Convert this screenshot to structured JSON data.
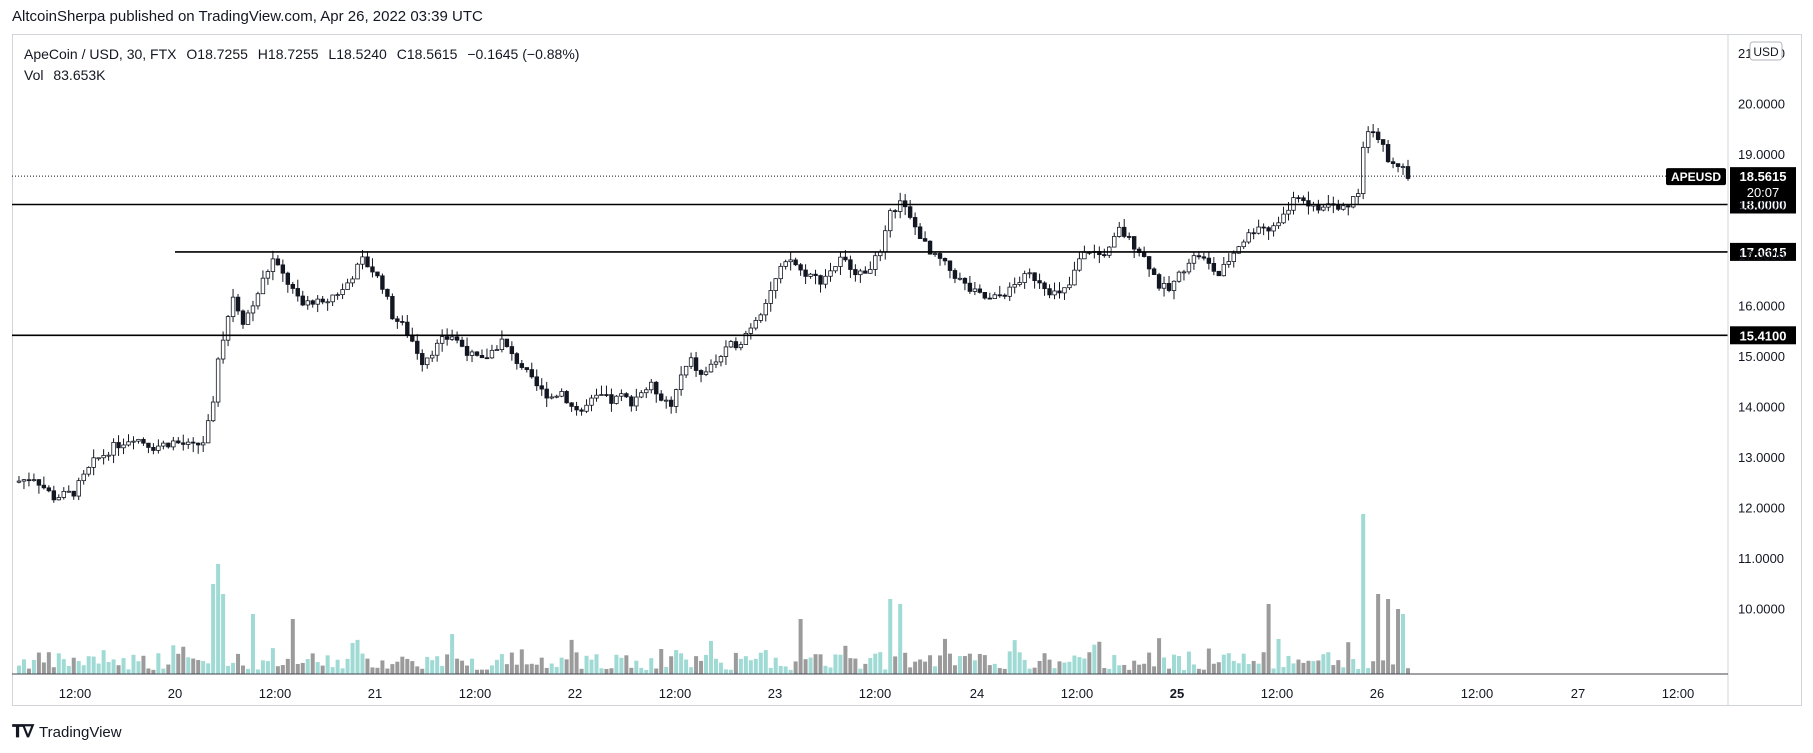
{
  "header": {
    "published": "AltcoinSherpa published on TradingView.com, Apr 26, 2022 03:39 UTC"
  },
  "legend": {
    "symbol": "ApeCoin / USD, 30, FTX",
    "open_label": "O",
    "open": "18.7255",
    "high_label": "H",
    "high": "18.7255",
    "low_label": "L",
    "low": "18.5240",
    "close_label": "C",
    "close": "18.5615",
    "change": "−0.1645 (−0.88%)",
    "vol_label": "Vol",
    "vol": "83.653K"
  },
  "price_axis": {
    "currency": "USD"
  },
  "footer": {
    "brand": "TradingView"
  },
  "colors": {
    "up": "#131722",
    "down": "#131722",
    "vol_up": "#8fd3cc",
    "vol_down": "#8a8a8a",
    "line": "#000000"
  },
  "chart_data": {
    "type": "candlestick",
    "symbol": "APEUSD",
    "interval": "30",
    "ylim": [
      10.5,
      21.0
    ],
    "y_ticks": [
      "10.0000",
      "11.0000",
      "12.0000",
      "13.0000",
      "14.0000",
      "15.0000",
      "16.0000",
      "17.0000",
      "18.0000",
      "19.0000",
      "20.0000",
      "21.0000"
    ],
    "x_ticks": [
      "12:00",
      "20",
      "12:00",
      "21",
      "12:00",
      "22",
      "12:00",
      "23",
      "12:00",
      "24",
      "12:00",
      "25",
      "12:00",
      "26",
      "12:00",
      "27",
      "12:00"
    ],
    "last_price": {
      "label": "APEUSD",
      "value": "18.5615",
      "countdown": "20:07"
    },
    "horizontal_levels": [
      "18.0000",
      "17.0615",
      "15.4100"
    ],
    "close_path": [
      [
        0,
        12.5
      ],
      [
        4,
        12.6
      ],
      [
        8,
        12.2
      ],
      [
        12,
        12.3
      ],
      [
        16,
        12.9
      ],
      [
        20,
        13.2
      ],
      [
        24,
        13.4
      ],
      [
        28,
        13.2
      ],
      [
        32,
        13.3
      ],
      [
        36,
        13.2
      ],
      [
        38,
        13.3
      ],
      [
        40,
        14.0
      ],
      [
        41,
        15.0
      ],
      [
        42,
        15.4
      ],
      [
        44,
        16.2
      ],
      [
        46,
        15.7
      ],
      [
        48,
        16.0
      ],
      [
        50,
        16.5
      ],
      [
        52,
        16.9
      ],
      [
        54,
        16.6
      ],
      [
        56,
        16.3
      ],
      [
        58,
        16.0
      ],
      [
        60,
        16.1
      ],
      [
        62,
        16.0
      ],
      [
        64,
        16.2
      ],
      [
        66,
        16.3
      ],
      [
        68,
        16.6
      ],
      [
        70,
        16.9
      ],
      [
        72,
        16.7
      ],
      [
        74,
        16.4
      ],
      [
        76,
        15.8
      ],
      [
        78,
        15.6
      ],
      [
        80,
        15.3
      ],
      [
        82,
        14.9
      ],
      [
        84,
        15.1
      ],
      [
        86,
        15.3
      ],
      [
        88,
        15.4
      ],
      [
        90,
        15.2
      ],
      [
        92,
        15.0
      ],
      [
        94,
        14.9
      ],
      [
        96,
        15.1
      ],
      [
        98,
        15.3
      ],
      [
        100,
        15.0
      ],
      [
        102,
        14.8
      ],
      [
        104,
        14.5
      ],
      [
        106,
        14.3
      ],
      [
        108,
        14.2
      ],
      [
        110,
        14.3
      ],
      [
        112,
        14.0
      ],
      [
        114,
        13.9
      ],
      [
        116,
        14.1
      ],
      [
        118,
        14.2
      ],
      [
        120,
        14.1
      ],
      [
        122,
        14.2
      ],
      [
        124,
        14.1
      ],
      [
        126,
        14.3
      ],
      [
        128,
        14.4
      ],
      [
        130,
        14.2
      ],
      [
        132,
        14.0
      ],
      [
        134,
        14.6
      ],
      [
        136,
        14.9
      ],
      [
        138,
        14.6
      ],
      [
        140,
        14.8
      ],
      [
        142,
        15.0
      ],
      [
        144,
        15.2
      ],
      [
        146,
        15.3
      ],
      [
        148,
        15.6
      ],
      [
        150,
        15.9
      ],
      [
        152,
        16.3
      ],
      [
        154,
        16.7
      ],
      [
        156,
        16.9
      ],
      [
        158,
        16.7
      ],
      [
        160,
        16.6
      ],
      [
        162,
        16.5
      ],
      [
        164,
        16.7
      ],
      [
        166,
        16.9
      ],
      [
        168,
        16.8
      ],
      [
        170,
        16.6
      ],
      [
        172,
        16.8
      ],
      [
        174,
        17.0
      ],
      [
        176,
        17.8
      ],
      [
        178,
        18.1
      ],
      [
        180,
        17.7
      ],
      [
        182,
        17.4
      ],
      [
        184,
        17.0
      ],
      [
        186,
        16.9
      ],
      [
        188,
        16.7
      ],
      [
        190,
        16.5
      ],
      [
        192,
        16.3
      ],
      [
        194,
        16.2
      ],
      [
        196,
        16.1
      ],
      [
        198,
        16.2
      ],
      [
        200,
        16.3
      ],
      [
        202,
        16.5
      ],
      [
        204,
        16.6
      ],
      [
        206,
        16.5
      ],
      [
        208,
        16.3
      ],
      [
        210,
        16.2
      ],
      [
        212,
        16.4
      ],
      [
        214,
        16.9
      ],
      [
        216,
        17.1
      ],
      [
        218,
        17.0
      ],
      [
        220,
        17.1
      ],
      [
        222,
        17.5
      ],
      [
        224,
        17.3
      ],
      [
        226,
        17.1
      ],
      [
        228,
        16.8
      ],
      [
        230,
        16.4
      ],
      [
        232,
        16.3
      ],
      [
        234,
        16.6
      ],
      [
        236,
        16.9
      ],
      [
        238,
        17.0
      ],
      [
        240,
        16.8
      ],
      [
        242,
        16.6
      ],
      [
        244,
        16.9
      ],
      [
        246,
        17.2
      ],
      [
        248,
        17.4
      ],
      [
        250,
        17.6
      ],
      [
        252,
        17.5
      ],
      [
        254,
        17.7
      ],
      [
        256,
        17.9
      ],
      [
        258,
        18.2
      ],
      [
        260,
        18.0
      ],
      [
        262,
        17.9
      ],
      [
        264,
        18.0
      ],
      [
        266,
        17.9
      ],
      [
        268,
        18.0
      ],
      [
        270,
        18.3
      ],
      [
        271,
        19.2
      ],
      [
        272,
        19.5
      ],
      [
        274,
        19.3
      ],
      [
        276,
        18.9
      ],
      [
        278,
        18.8
      ],
      [
        280,
        18.6
      ]
    ],
    "volume_series": "bars with large spikes near 20, 23 and 26"
  }
}
